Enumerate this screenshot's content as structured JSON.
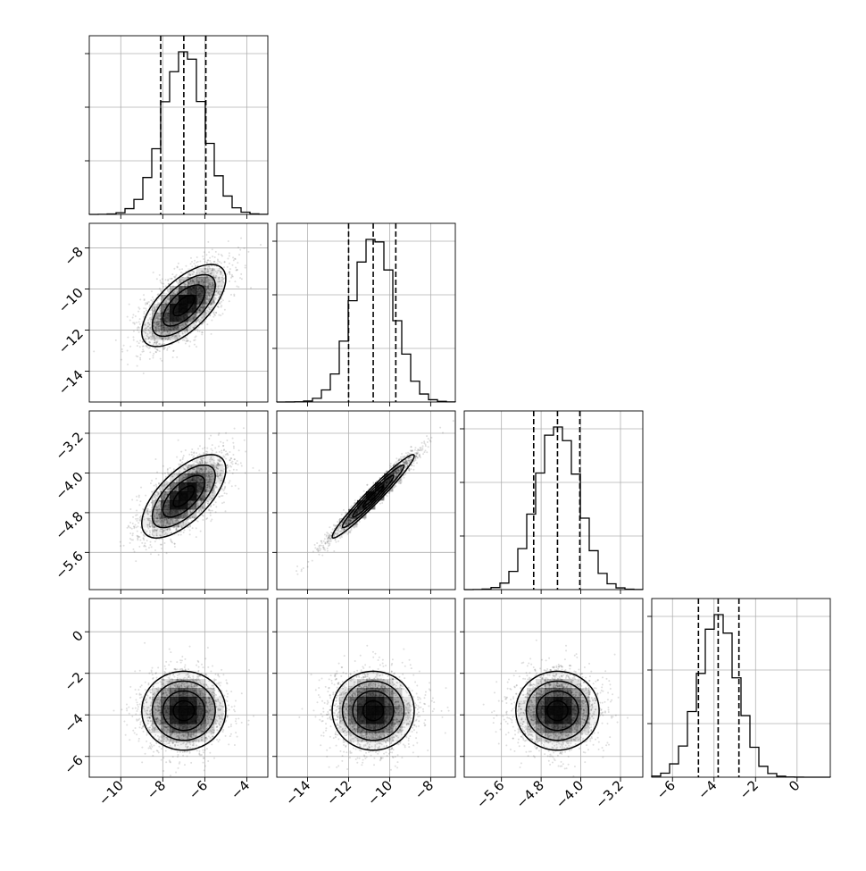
{
  "chart_data": {
    "type": "corner",
    "grid": true,
    "params": [
      {
        "range": [
          -11.5,
          -3.0
        ],
        "ticks": [
          -10,
          -8,
          -6,
          -4
        ],
        "tick_labels": [
          "−10",
          "−8",
          "−6",
          "−4"
        ],
        "mean": -7.0,
        "std": 1.0,
        "quantiles": [
          -8.1,
          -7.0,
          -5.95
        ]
      },
      {
        "range": [
          -15.5,
          -6.8
        ],
        "ticks": [
          -14,
          -12,
          -10,
          -8
        ],
        "tick_labels": [
          "−14",
          "−12",
          "−10",
          "−8"
        ],
        "ytick_labels": [
          "−14",
          "−12",
          "−10",
          "−8"
        ],
        "mean": -10.8,
        "std": 1.0,
        "quantiles": [
          -12.0,
          -10.8,
          -9.7
        ]
      },
      {
        "range": [
          -6.35,
          -2.75
        ],
        "ticks": [
          -5.6,
          -4.8,
          -4.0,
          -3.2
        ],
        "tick_labels": [
          "−5.6",
          "−4.8",
          "−4.0",
          "−3.2"
        ],
        "ytick_labels": [
          "−5.6",
          "−4.8",
          "−4.0",
          "−3.2"
        ],
        "mean": -4.47,
        "std": 0.42,
        "quantiles": [
          -4.95,
          -4.47,
          -4.02
        ]
      },
      {
        "range": [
          -7.0,
          1.6
        ],
        "ticks": [
          -6,
          -4,
          -2,
          0
        ],
        "tick_labels": [
          "−6",
          "−4",
          "−2",
          "0"
        ],
        "ytick_labels": [
          "−6",
          "−4",
          "−2",
          "0"
        ],
        "mean": -3.8,
        "std": 0.95,
        "quantiles": [
          -4.75,
          -3.8,
          -2.8
        ]
      }
    ],
    "correlations": [
      {
        "pair": [
          0,
          1
        ],
        "rho": 0.65
      },
      {
        "pair": [
          0,
          2
        ],
        "rho": 0.65
      },
      {
        "pair": [
          1,
          2
        ],
        "rho": 0.97
      },
      {
        "pair": [
          0,
          3
        ],
        "rho": 0.0
      },
      {
        "pair": [
          1,
          3
        ],
        "rho": 0.0
      },
      {
        "pair": [
          2,
          3
        ],
        "rho": 0.0
      }
    ]
  }
}
